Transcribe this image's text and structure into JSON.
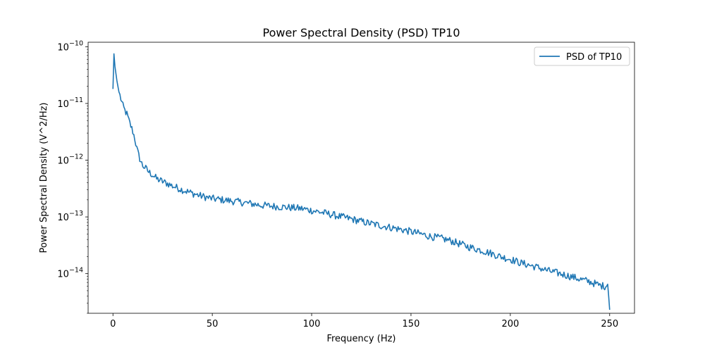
{
  "chart_data": {
    "type": "line",
    "title": "Power Spectral Density (PSD) TP10",
    "xlabel": "Frequency (Hz)",
    "ylabel": "Power Spectral Density (V^2/Hz)",
    "xlim": [
      -12.5,
      262.5
    ],
    "ylim": [
      2e-15,
      1.2e-10
    ],
    "yscale": "log",
    "x_ticks": [
      0,
      50,
      100,
      150,
      200,
      250
    ],
    "x_tick_labels": [
      "0",
      "50",
      "100",
      "150",
      "200",
      "250"
    ],
    "y_ticks": [
      1e-14,
      1e-13,
      1e-12,
      1e-11,
      1e-10
    ],
    "y_tick_mantissa": [
      "10",
      "10",
      "10",
      "10",
      "10"
    ],
    "y_tick_exponents": [
      "−14",
      "−13",
      "−12",
      "−11",
      "−10"
    ],
    "grid": false,
    "legend_position": "top-right",
    "color": "#1f77b4",
    "series": [
      {
        "name": "PSD of TP10",
        "points": [
          [
            0,
            1.8e-11
          ],
          [
            0.5,
            7.5e-11
          ],
          [
            1,
            4.5e-11
          ],
          [
            2,
            2.5e-11
          ],
          [
            3,
            1.6e-11
          ],
          [
            4,
            1.2e-11
          ],
          [
            5,
            9e-12
          ],
          [
            6,
            7.5e-12
          ],
          [
            7,
            6.5e-12
          ],
          [
            8,
            5e-12
          ],
          [
            9,
            4e-12
          ],
          [
            10,
            3.2e-12
          ],
          [
            11,
            2.4e-12
          ],
          [
            12,
            1.6e-12
          ],
          [
            13,
            1.2e-12
          ],
          [
            14,
            9.5e-13
          ],
          [
            15,
            8e-13
          ],
          [
            16,
            7.5e-13
          ],
          [
            17,
            6.8e-13
          ],
          [
            18,
            6.2e-13
          ],
          [
            20,
            5.5e-13
          ],
          [
            22,
            4.7e-13
          ],
          [
            25,
            4.2e-13
          ],
          [
            28,
            3.8e-13
          ],
          [
            30,
            3.5e-13
          ],
          [
            33,
            3.2e-13
          ],
          [
            35,
            3e-13
          ],
          [
            40,
            2.6e-13
          ],
          [
            45,
            2.3e-13
          ],
          [
            50,
            2.1e-13
          ],
          [
            55,
            2e-13
          ],
          [
            60,
            1.9e-13
          ],
          [
            65,
            1.8e-13
          ],
          [
            70,
            1.7e-13
          ],
          [
            75,
            1.6e-13
          ],
          [
            80,
            1.55e-13
          ],
          [
            85,
            1.5e-13
          ],
          [
            90,
            1.45e-13
          ],
          [
            95,
            1.4e-13
          ],
          [
            100,
            1.3e-13
          ],
          [
            105,
            1.2e-13
          ],
          [
            110,
            1.1e-13
          ],
          [
            115,
            1e-13
          ],
          [
            120,
            9.2e-14
          ],
          [
            125,
            8.3e-14
          ],
          [
            130,
            7.6e-14
          ],
          [
            135,
            7e-14
          ],
          [
            140,
            6.5e-14
          ],
          [
            145,
            6e-14
          ],
          [
            150,
            5.5e-14
          ],
          [
            155,
            5e-14
          ],
          [
            160,
            4.5e-14
          ],
          [
            165,
            4.2e-14
          ],
          [
            170,
            3.8e-14
          ],
          [
            175,
            3.3e-14
          ],
          [
            180,
            2.9e-14
          ],
          [
            185,
            2.6e-14
          ],
          [
            190,
            2.3e-14
          ],
          [
            195,
            2e-14
          ],
          [
            200,
            1.8e-14
          ],
          [
            205,
            1.55e-14
          ],
          [
            210,
            1.4e-14
          ],
          [
            215,
            1.25e-14
          ],
          [
            220,
            1.1e-14
          ],
          [
            225,
            1e-14
          ],
          [
            230,
            9e-15
          ],
          [
            235,
            8e-15
          ],
          [
            240,
            7.2e-15
          ],
          [
            245,
            6.2e-15
          ],
          [
            248,
            6e-15
          ],
          [
            249,
            6.5e-15
          ],
          [
            249.5,
            4e-15
          ],
          [
            250,
            2.3e-15
          ]
        ]
      }
    ]
  }
}
